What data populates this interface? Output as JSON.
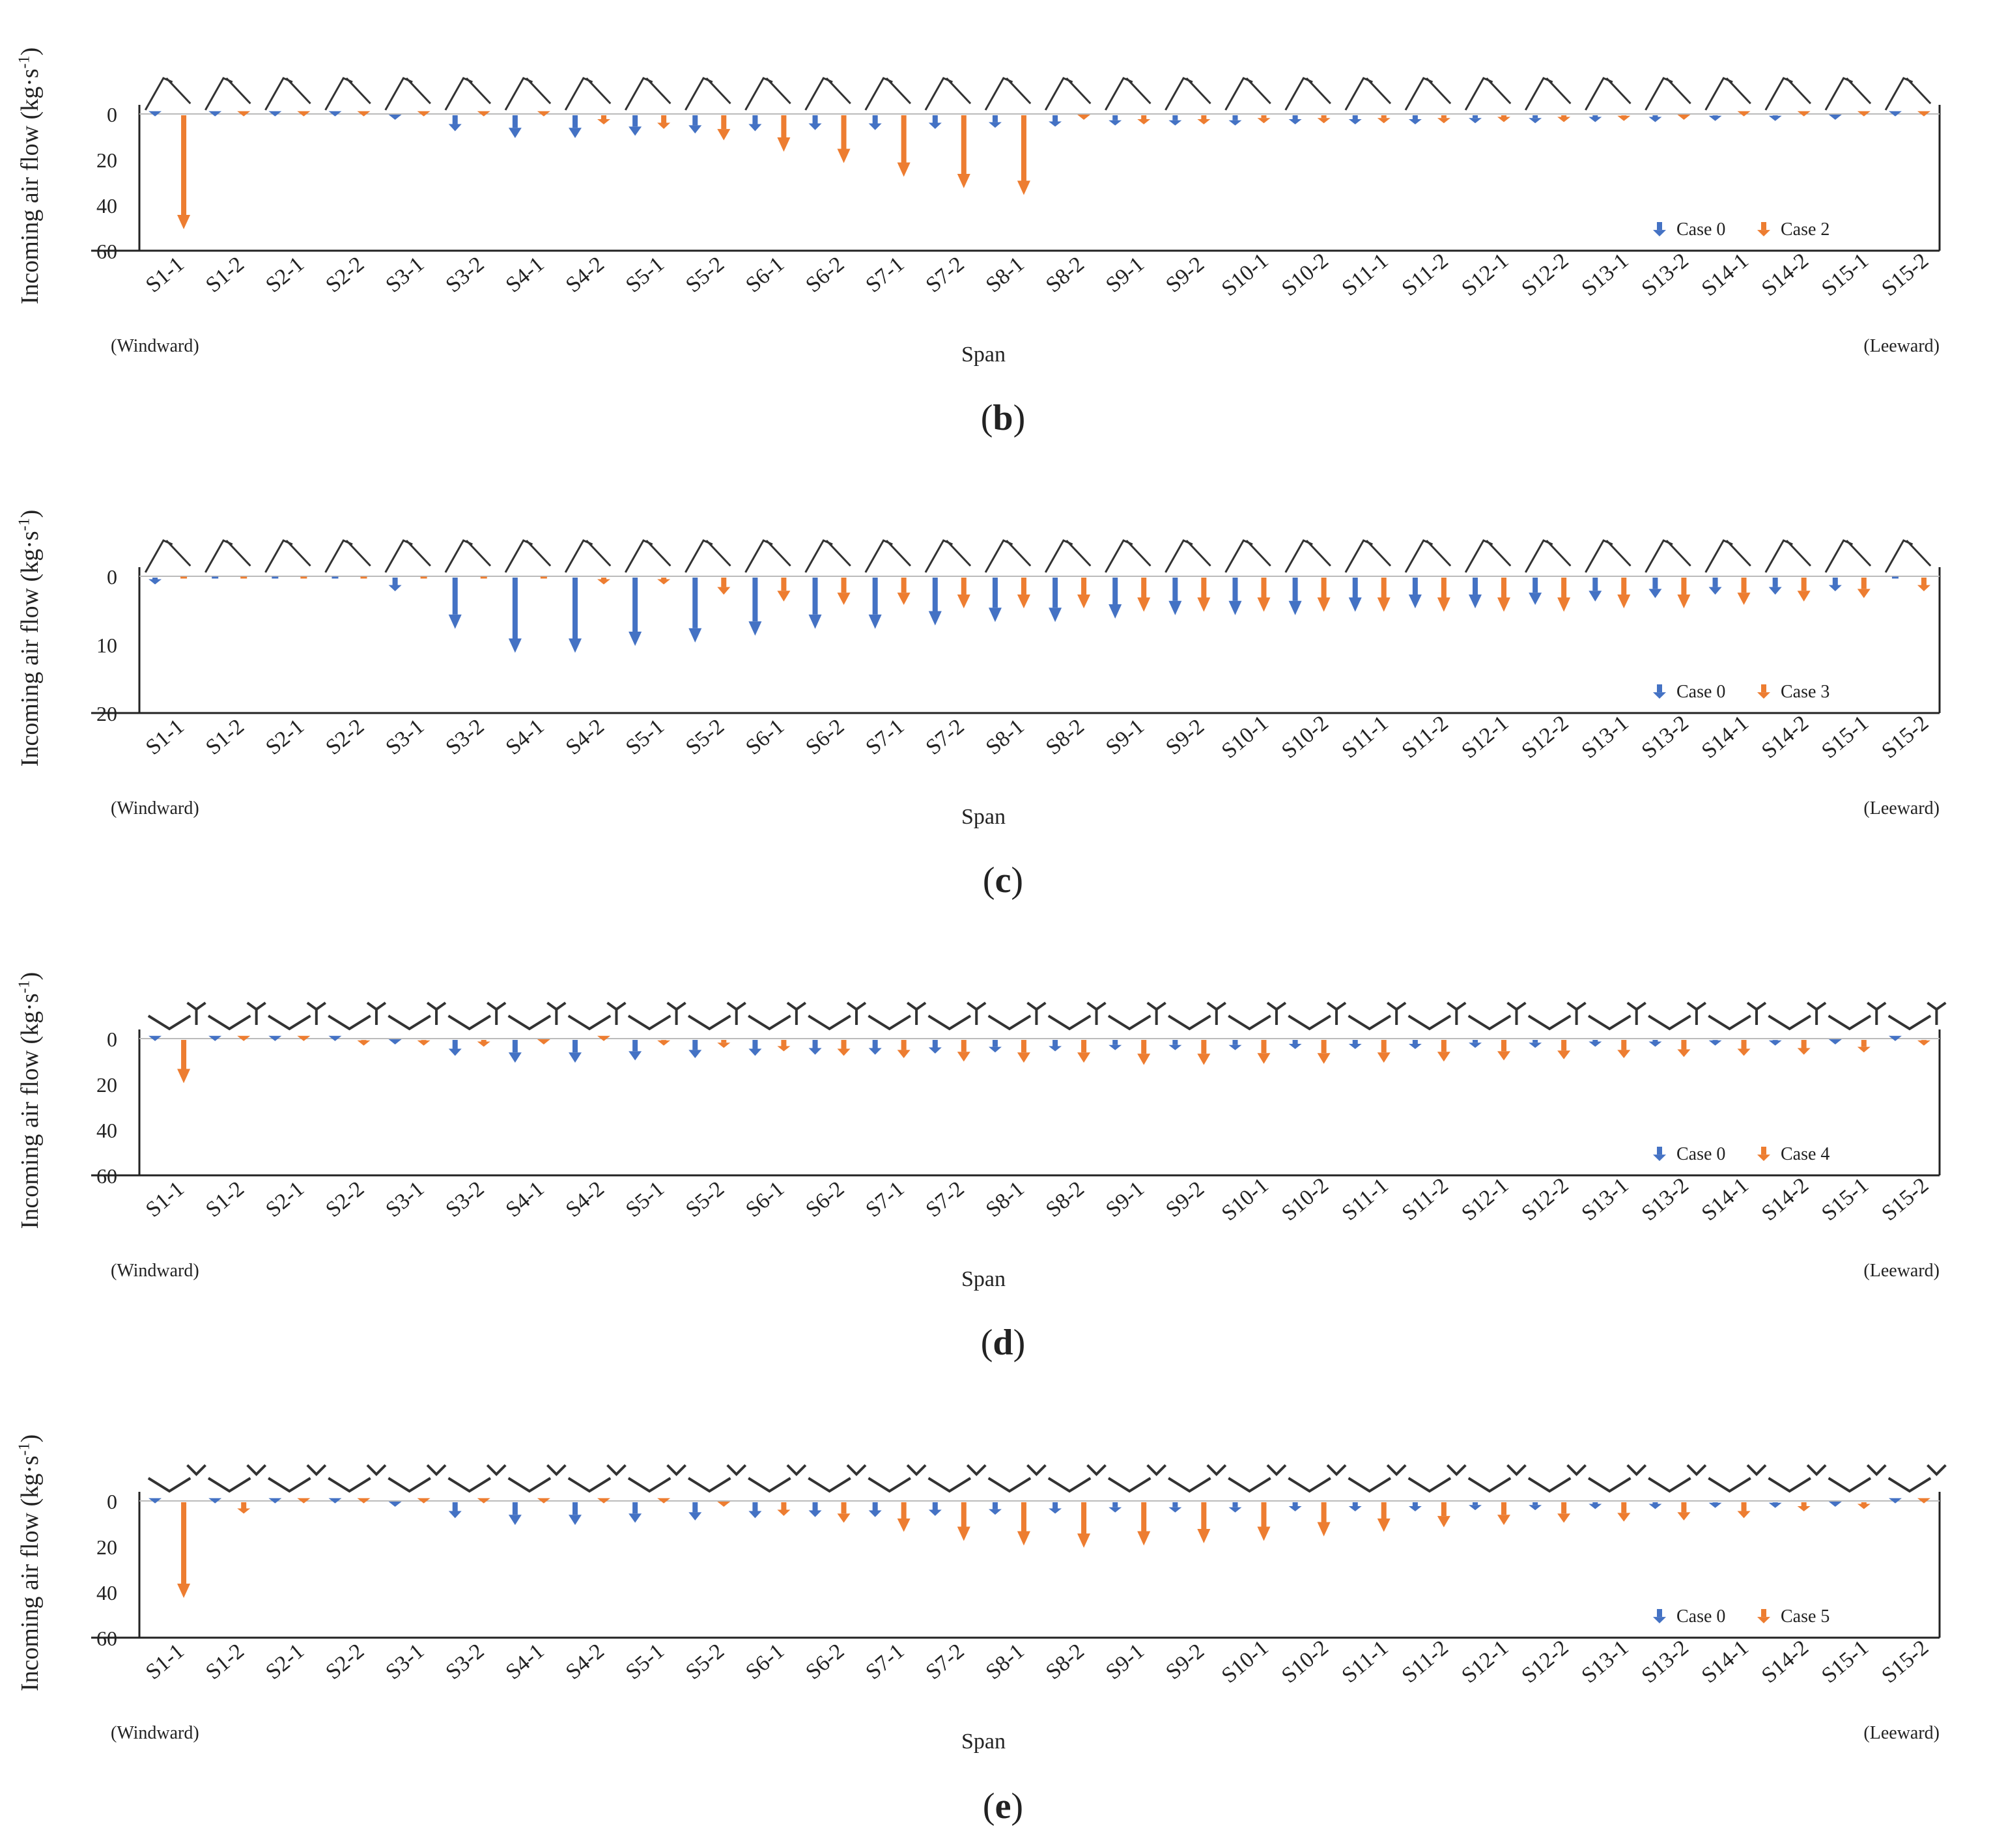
{
  "y_label": "Incoming air flow (kg·s⁻¹)",
  "x_label": "Span",
  "windward_note": "(Windward)",
  "leeward_note": "(Leeward)",
  "colors": {
    "case0": "#4472C4",
    "caseN": "#ED7D31",
    "axis": "#222222",
    "roof": "#333333"
  },
  "chart_data": [
    {
      "type": "bar",
      "panel": "b",
      "orientation": "downward-arrows",
      "roof_style": "sawtooth",
      "title": "",
      "xlabel": "Span",
      "ylabel": "Incoming air flow (kg·s⁻¹)",
      "ylim": [
        0,
        60
      ],
      "yticks": [
        0,
        20,
        40,
        60
      ],
      "legend": "bottom-right",
      "categories": [
        "S1-1",
        "S1-2",
        "S2-1",
        "S2-2",
        "S3-1",
        "S3-2",
        "S4-1",
        "S4-2",
        "S5-1",
        "S5-2",
        "S6-1",
        "S6-2",
        "S7-1",
        "S7-2",
        "S8-1",
        "S8-2",
        "S9-1",
        "S9-2",
        "S10-1",
        "S10-2",
        "S11-1",
        "S11-2",
        "S12-1",
        "S12-2",
        "S13-1",
        "S13-2",
        "S14-1",
        "S14-2",
        "S15-1",
        "S15-2"
      ],
      "series": [
        {
          "name": "Case 0",
          "values": [
            0.5,
            0.5,
            0.5,
            0.5,
            2,
            7,
            10,
            10,
            9,
            8,
            7,
            6.5,
            6.5,
            6,
            5.5,
            5,
            4.5,
            4.5,
            4.5,
            4,
            4,
            4,
            3.5,
            3.5,
            3,
            3,
            2.5,
            2.5,
            2,
            0.5
          ]
        },
        {
          "name": "Case 2",
          "values": [
            50,
            0.5,
            0.5,
            0.5,
            0.5,
            0.5,
            0.5,
            4,
            6,
            11,
            16,
            21,
            27,
            32,
            35,
            2,
            4,
            4,
            3.5,
            3.5,
            3.5,
            3.5,
            3,
            3,
            2.5,
            2,
            0.5,
            0.5,
            0.5,
            0.5
          ]
        }
      ]
    },
    {
      "type": "bar",
      "panel": "c",
      "orientation": "downward-arrows",
      "roof_style": "sawtooth",
      "title": "",
      "xlabel": "Span",
      "ylabel": "Incoming air flow (kg·s⁻¹)",
      "ylim": [
        0,
        20
      ],
      "yticks": [
        0,
        10,
        20
      ],
      "legend": "bottom-right",
      "categories": [
        "S1-1",
        "S1-2",
        "S2-1",
        "S2-2",
        "S3-1",
        "S3-2",
        "S4-1",
        "S4-2",
        "S5-1",
        "S5-2",
        "S6-1",
        "S6-2",
        "S7-1",
        "S7-2",
        "S8-1",
        "S8-2",
        "S9-1",
        "S9-2",
        "S10-1",
        "S10-2",
        "S11-1",
        "S11-2",
        "S12-1",
        "S12-2",
        "S13-1",
        "S13-2",
        "S14-1",
        "S14-2",
        "S15-1",
        "S15-2"
      ],
      "series": [
        {
          "name": "Case 0",
          "values": [
            1,
            0,
            0,
            0,
            2,
            7.5,
            11,
            11,
            10,
            9.5,
            8.5,
            7.5,
            7.5,
            7,
            6.5,
            6.5,
            6,
            5.5,
            5.5,
            5.5,
            5,
            4.5,
            4.5,
            4,
            3.5,
            3,
            2.5,
            2.5,
            2,
            0
          ]
        },
        {
          "name": "Case 3",
          "values": [
            0,
            0,
            0,
            0,
            0,
            0,
            0,
            1,
            1,
            2.5,
            3.5,
            4,
            4,
            4.5,
            4.5,
            4.5,
            5,
            5,
            5,
            5,
            5,
            5,
            5,
            5,
            4.5,
            4.5,
            4,
            3.5,
            3,
            2
          ]
        }
      ]
    },
    {
      "type": "bar",
      "panel": "d",
      "orientation": "downward-arrows",
      "roof_style": "y-vents",
      "title": "",
      "xlabel": "Span",
      "ylabel": "Incoming air flow (kg·s⁻¹)",
      "ylim": [
        0,
        60
      ],
      "yticks": [
        0,
        20,
        40,
        60
      ],
      "legend": "bottom-right",
      "categories": [
        "S1-1",
        "S1-2",
        "S2-1",
        "S2-2",
        "S3-1",
        "S3-2",
        "S4-1",
        "S4-2",
        "S5-1",
        "S5-2",
        "S6-1",
        "S6-2",
        "S7-1",
        "S7-2",
        "S8-1",
        "S8-2",
        "S9-1",
        "S9-2",
        "S10-1",
        "S10-2",
        "S11-1",
        "S11-2",
        "S12-1",
        "S12-2",
        "S13-1",
        "S13-2",
        "S14-1",
        "S14-2",
        "S15-1",
        "S15-2"
      ],
      "series": [
        {
          "name": "Case 0",
          "values": [
            0.5,
            0.5,
            0.5,
            0.5,
            2,
            7,
            10,
            10,
            9,
            8,
            7,
            6.5,
            6.5,
            6,
            5.5,
            5,
            4.5,
            4.5,
            4.5,
            4,
            4,
            4,
            3.5,
            3.5,
            3,
            3,
            2.5,
            2.5,
            2,
            0.5
          ]
        },
        {
          "name": "Case 4",
          "values": [
            19,
            0.5,
            0.5,
            2.5,
            2.5,
            3,
            2,
            0.5,
            2.5,
            3.5,
            5,
            7,
            8,
            9.5,
            10,
            10,
            11,
            11,
            10.5,
            10.5,
            10,
            9.5,
            9,
            8.5,
            8,
            7.5,
            7,
            6.5,
            5.5,
            2.5
          ]
        }
      ]
    },
    {
      "type": "bar",
      "panel": "e",
      "orientation": "downward-arrows",
      "roof_style": "v-vents",
      "title": "",
      "xlabel": "Span",
      "ylabel": "Incoming air flow (kg·s⁻¹)",
      "ylim": [
        0,
        60
      ],
      "yticks": [
        0,
        20,
        40,
        60
      ],
      "legend": "bottom-right",
      "categories": [
        "S1-1",
        "S1-2",
        "S2-1",
        "S2-2",
        "S3-1",
        "S3-2",
        "S4-1",
        "S4-2",
        "S5-1",
        "S5-2",
        "S6-1",
        "S6-2",
        "S7-1",
        "S7-2",
        "S8-1",
        "S8-2",
        "S9-1",
        "S9-2",
        "S10-1",
        "S10-2",
        "S11-1",
        "S11-2",
        "S12-1",
        "S12-2",
        "S13-1",
        "S13-2",
        "S14-1",
        "S14-2",
        "S15-1",
        "S15-2"
      ],
      "series": [
        {
          "name": "Case 0",
          "values": [
            0.5,
            0.5,
            0.5,
            0.5,
            2,
            7,
            10,
            10,
            9,
            8,
            7,
            6.5,
            6.5,
            6,
            5.5,
            5,
            4.5,
            4.5,
            4.5,
            4,
            4,
            4,
            3.5,
            3.5,
            3,
            3,
            2.5,
            2.5,
            2,
            0.5
          ]
        },
        {
          "name": "Case 5",
          "values": [
            42,
            5,
            0.5,
            0.5,
            0.5,
            0.5,
            0.5,
            0.5,
            0.5,
            2,
            6,
            9,
            13,
            17,
            19,
            20,
            19,
            18,
            17,
            15,
            13,
            11,
            10,
            9,
            8.5,
            8,
            7,
            4,
            3,
            0.5
          ]
        }
      ]
    }
  ],
  "panels": [
    {
      "letter": "b"
    },
    {
      "letter": "c"
    },
    {
      "letter": "d"
    },
    {
      "letter": "e"
    }
  ]
}
